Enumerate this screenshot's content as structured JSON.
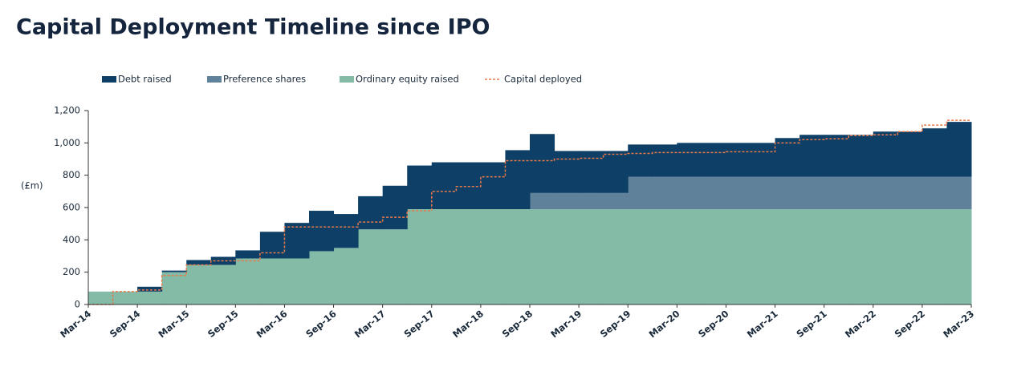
{
  "chart_data": {
    "type": "stacked-step-area",
    "title": "Capital Deployment Timeline since IPO",
    "y_label": "(£m)",
    "x": [
      "Mar-14",
      "Jun-14",
      "Sep-14",
      "Dec-14",
      "Mar-15",
      "Jun-15",
      "Sep-15",
      "Dec-15",
      "Mar-16",
      "Jun-16",
      "Sep-16",
      "Dec-16",
      "Mar-17",
      "Jun-17",
      "Sep-17",
      "Dec-17",
      "Mar-18",
      "Jun-18",
      "Sep-18",
      "Dec-18",
      "Mar-19",
      "Jun-19",
      "Sep-19",
      "Dec-19",
      "Mar-20",
      "Jun-20",
      "Sep-20",
      "Dec-20",
      "Mar-21",
      "Jun-21",
      "Sep-21",
      "Dec-21",
      "Mar-22",
      "Jun-22",
      "Sep-22",
      "Dec-22",
      "Mar-23"
    ],
    "series": [
      {
        "name": "Ordinary equity raised",
        "color": "#84bba7",
        "values": [
          80,
          80,
          80,
          200,
          245,
          245,
          285,
          285,
          285,
          330,
          350,
          465,
          465,
          590,
          590,
          590,
          590,
          590,
          590,
          590,
          590,
          590,
          590,
          590,
          590,
          590,
          590,
          590,
          590,
          590,
          590,
          590,
          590,
          590,
          590,
          590,
          590
        ]
      },
      {
        "name": "Preference shares",
        "color": "#5f8199",
        "values": [
          0,
          0,
          0,
          0,
          0,
          0,
          0,
          0,
          0,
          0,
          0,
          0,
          0,
          0,
          0,
          0,
          0,
          0,
          100,
          100,
          100,
          100,
          200,
          200,
          200,
          200,
          200,
          200,
          200,
          200,
          200,
          200,
          200,
          200,
          200,
          200,
          200
        ]
      },
      {
        "name": "Debt raised",
        "color": "#0e3f66",
        "values": [
          0,
          0,
          30,
          10,
          30,
          50,
          50,
          165,
          220,
          250,
          210,
          205,
          270,
          270,
          290,
          290,
          290,
          365,
          365,
          260,
          260,
          260,
          200,
          200,
          210,
          210,
          210,
          210,
          240,
          260,
          260,
          260,
          280,
          280,
          300,
          340,
          340
        ]
      }
    ],
    "line": {
      "name": "Capital deployed",
      "color": "#e8794a",
      "values": [
        0,
        80,
        90,
        180,
        245,
        270,
        270,
        320,
        480,
        480,
        480,
        510,
        540,
        580,
        700,
        730,
        790,
        890,
        890,
        900,
        905,
        930,
        935,
        940,
        940,
        940,
        945,
        945,
        1000,
        1020,
        1025,
        1045,
        1050,
        1070,
        1110,
        1140,
        1140
      ]
    },
    "legend_order": [
      2,
      1,
      0
    ],
    "ylim": [
      0,
      1200
    ],
    "yticks": [
      0,
      200,
      400,
      600,
      800,
      {
        "value": 1000,
        "label": "1,000"
      },
      {
        "value": 1200,
        "label": "1,200"
      }
    ]
  }
}
